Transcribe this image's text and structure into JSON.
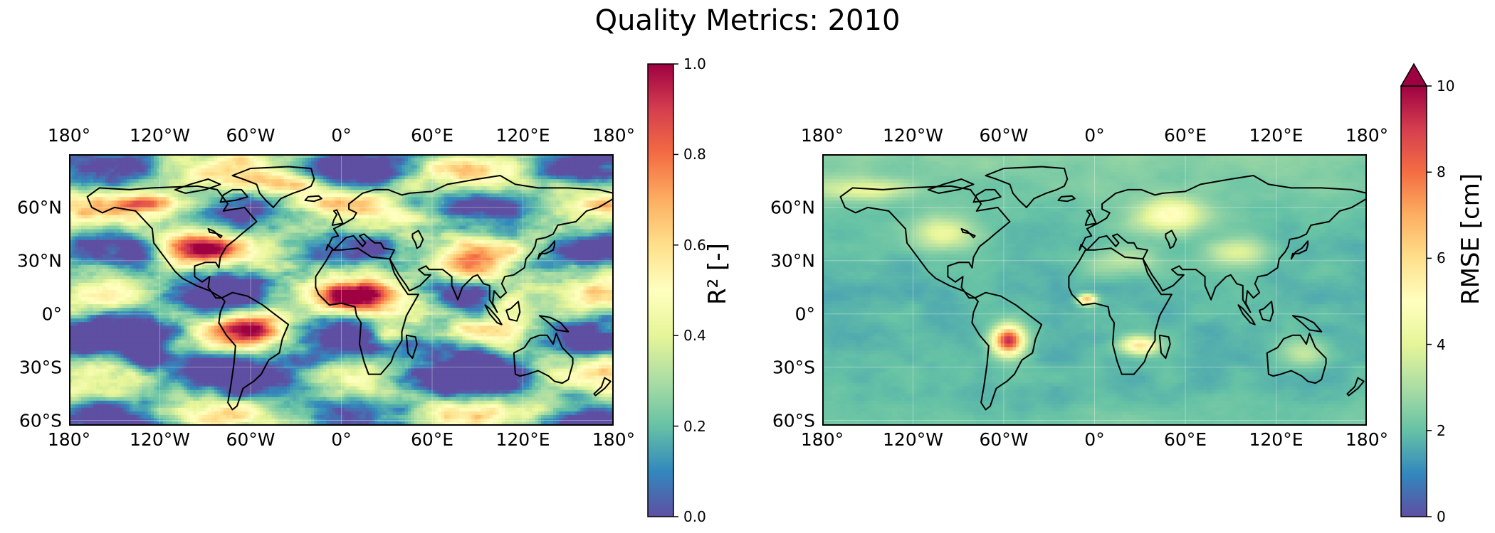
{
  "title": "Quality Metrics: 2010",
  "lon_labels": [
    "180°",
    "120°W",
    "60°W",
    "0°",
    "60°E",
    "120°E",
    "180°"
  ],
  "lat_labels": [
    "60°N",
    "30°N",
    "0°",
    "30°S",
    "60°S"
  ],
  "maps": [
    {
      "metric": "R2",
      "colorbar_label": "R² [-]",
      "range": [
        0.0,
        1.0
      ],
      "ticks": [
        "0.0",
        "0.2",
        "0.4",
        "0.6",
        "0.8",
        "1.0"
      ],
      "extend": "neither",
      "colormap": "Spectral_r"
    },
    {
      "metric": "RMSE",
      "colorbar_label": "RMSE [cm]",
      "range": [
        0,
        10
      ],
      "ticks": [
        "0",
        "2",
        "4",
        "6",
        "8",
        "10"
      ],
      "extend": "max",
      "colormap": "Spectral_r"
    }
  ],
  "colormap_stops": [
    "#5e4fa2",
    "#3288bd",
    "#66c2a5",
    "#abdda4",
    "#e6f598",
    "#ffffbf",
    "#fee08b",
    "#fdae61",
    "#f46d43",
    "#d53e4f",
    "#9e0142"
  ]
}
